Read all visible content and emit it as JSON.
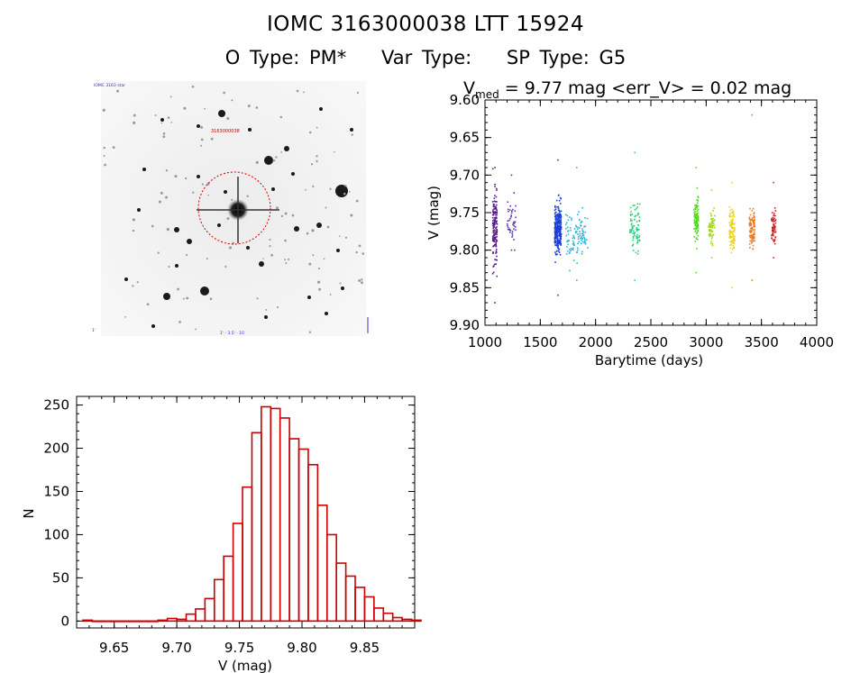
{
  "header": {
    "title": "IOMC 3163000038    LTT 15924",
    "otype": "O Type: PM*",
    "vartype": "Var Type:",
    "sptype": "SP Type: G5"
  },
  "thumbnail": {
    "top_left_label": "IOMC 3163 star",
    "marker_label": "3163000038",
    "bottom_left_label": "1'",
    "bottom_label": "1' · 3.5' · 10"
  },
  "chart_data": [
    {
      "type": "scatter",
      "title_v": "V",
      "title_sub": "med",
      "title_rest": " = 9.77 mag <err_V> = 0.02 mag",
      "xlabel": "Barytime (days)",
      "ylabel": "V (mag)",
      "xlim": [
        1000,
        4000
      ],
      "ylim": [
        9.9,
        9.6
      ],
      "y_inverted": true,
      "xticks": [
        1000,
        1500,
        2000,
        2500,
        3000,
        3500,
        4000
      ],
      "yticks": [
        "9.60",
        "9.65",
        "9.70",
        "9.75",
        "9.80",
        "9.85",
        "9.90"
      ],
      "groups": [
        {
          "x": [
            1070,
            1110
          ],
          "ymin": 9.69,
          "ymax": 9.87,
          "ycenter": 9.77,
          "spread": 0.045,
          "n": 160,
          "color": "#5a1a8c"
        },
        {
          "x": [
            1200,
            1280
          ],
          "ymin": 9.7,
          "ymax": 9.8,
          "ycenter": 9.76,
          "spread": 0.03,
          "n": 40,
          "color": "#5b2fb0"
        },
        {
          "x": [
            1630,
            1690
          ],
          "ymin": 9.68,
          "ymax": 9.86,
          "ycenter": 9.77,
          "spread": 0.03,
          "n": 300,
          "color": "#1f3fd8"
        },
        {
          "x": [
            1730,
            1930
          ],
          "ymin": 9.69,
          "ymax": 9.84,
          "ycenter": 9.78,
          "spread": 0.03,
          "n": 110,
          "color": "#26b6dc"
        },
        {
          "x": [
            2310,
            2400
          ],
          "ymin": 9.67,
          "ymax": 9.84,
          "ycenter": 9.77,
          "spread": 0.03,
          "n": 80,
          "color": "#28d07a"
        },
        {
          "x": [
            2890,
            2930
          ],
          "ymin": 9.69,
          "ymax": 9.83,
          "ycenter": 9.76,
          "spread": 0.03,
          "n": 110,
          "color": "#55d820"
        },
        {
          "x": [
            3020,
            3080
          ],
          "ymin": 9.72,
          "ymax": 9.81,
          "ycenter": 9.77,
          "spread": 0.02,
          "n": 60,
          "color": "#a2d61e"
        },
        {
          "x": [
            3210,
            3260
          ],
          "ymin": 9.71,
          "ymax": 9.85,
          "ycenter": 9.77,
          "spread": 0.03,
          "n": 110,
          "color": "#ecd21a"
        },
        {
          "x": [
            3390,
            3440
          ],
          "ymin": 9.62,
          "ymax": 9.84,
          "ycenter": 9.77,
          "spread": 0.025,
          "n": 100,
          "color": "#ec7a1a"
        },
        {
          "x": [
            3590,
            3630
          ],
          "ymin": 9.71,
          "ymax": 9.81,
          "ycenter": 9.77,
          "spread": 0.02,
          "n": 70,
          "color": "#d42020"
        }
      ]
    },
    {
      "type": "bar",
      "xlabel": "V (mag)",
      "ylabel": "N",
      "xlim": [
        9.62,
        9.89
      ],
      "ylim": [
        -8,
        260
      ],
      "xticks": [
        "9.65",
        "9.70",
        "9.75",
        "9.80",
        "9.85"
      ],
      "yticks": [
        0,
        50,
        100,
        150,
        200,
        250
      ],
      "bin_start": 9.625,
      "bin_width": 0.0075,
      "values": [
        1,
        0,
        0,
        0,
        0,
        0,
        0,
        0,
        1,
        3,
        2,
        8,
        14,
        26,
        48,
        75,
        113,
        155,
        218,
        248,
        246,
        235,
        211,
        199,
        181,
        134,
        100,
        67,
        52,
        39,
        28,
        15,
        9,
        4,
        2,
        1
      ],
      "color": "#cc0000"
    }
  ]
}
